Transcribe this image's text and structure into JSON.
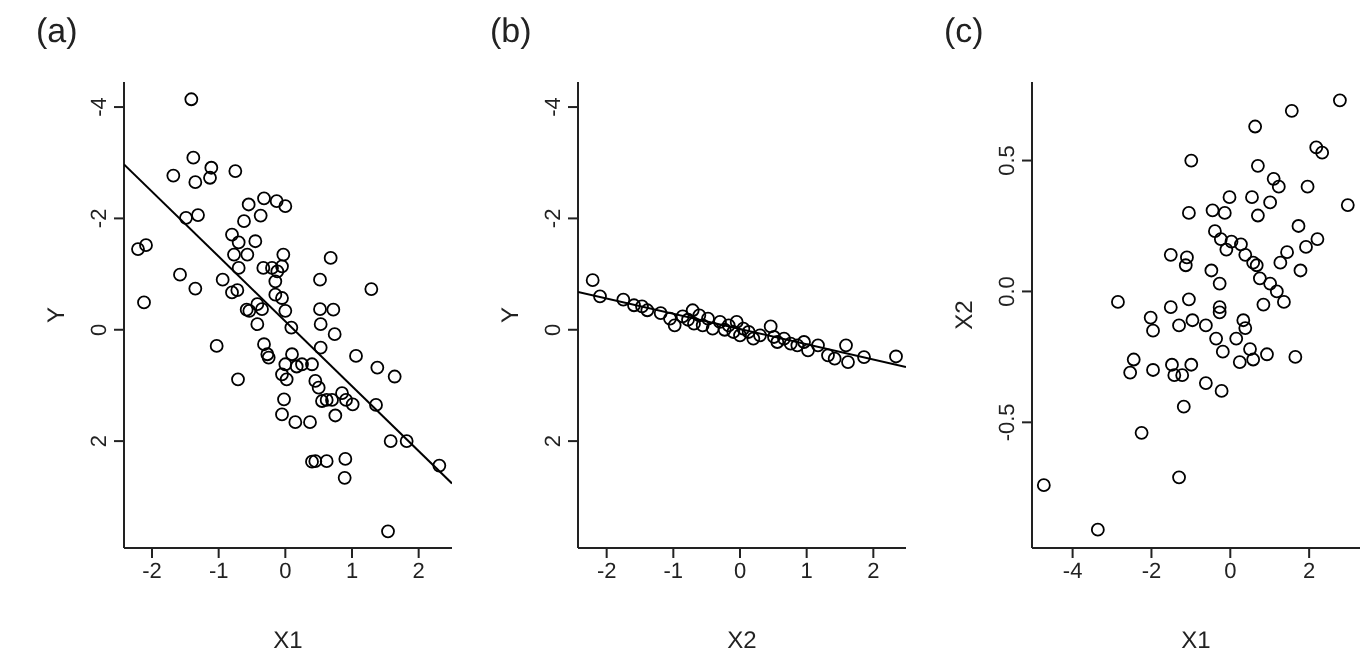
{
  "chart_data": [
    {
      "type": "scatter",
      "title": "(a)",
      "xlabel": "X1",
      "ylabel": "Y",
      "xlim": [
        -2.42,
        2.5
      ],
      "ylim": [
        3.92,
        -4.45
      ],
      "xticks": [
        -2,
        -1,
        0,
        1,
        2
      ],
      "yticks": [
        -4,
        -2,
        0,
        2
      ],
      "series": [
        {
          "type": "scatter",
          "marker": "circle",
          "color": "#000000",
          "x": [
            -1.41,
            -1.38,
            -1.68,
            -1.35,
            -1.11,
            -1.13,
            -0.75,
            -1.49,
            -1.31,
            -2.21,
            -2.09,
            -1.58,
            -1.35,
            -2.12,
            -0.94,
            -0.8,
            -0.72,
            -0.55,
            -0.32,
            -0.13,
            0.0,
            -0.62,
            -0.45,
            -0.8,
            -0.7,
            -0.77,
            -0.7,
            -0.57,
            -0.37,
            -0.33,
            -0.2,
            -0.15,
            -0.12,
            -0.05,
            -0.03,
            -0.15,
            -0.05,
            0.0,
            -0.58,
            -0.54,
            -0.42,
            -0.35,
            -0.42,
            0.09,
            -1.03,
            -0.32,
            -0.27,
            -0.25,
            0.1,
            0.0,
            -0.05,
            0.02,
            0.17,
            0.25,
            0.4,
            -0.02,
            -0.05,
            0.15,
            0.37,
            -0.71,
            0.52,
            0.68,
            0.52,
            0.72,
            0.53,
            0.74,
            0.53,
            1.06,
            1.29,
            1.38,
            1.64,
            0.45,
            0.5,
            0.55,
            0.62,
            0.7,
            0.85,
            0.91,
            1.01,
            0.75,
            0.45,
            0.4,
            0.62,
            0.9,
            0.89,
            1.36,
            1.58,
            1.82,
            2.31,
            1.54
          ],
          "values": [
            -4.14,
            -3.09,
            -2.77,
            -2.65,
            -2.91,
            -2.73,
            -2.85,
            -2.01,
            -2.06,
            -1.45,
            -1.52,
            -0.99,
            -0.74,
            -0.49,
            -0.9,
            -0.67,
            -0.71,
            -2.25,
            -2.36,
            -2.31,
            -2.22,
            -1.95,
            -1.59,
            -1.71,
            -1.57,
            -1.35,
            -1.11,
            -1.35,
            -2.05,
            -1.11,
            -1.11,
            -0.87,
            -1.05,
            -1.14,
            -1.35,
            -0.63,
            -0.57,
            -0.34,
            -0.36,
            -0.34,
            -0.46,
            -0.37,
            -0.1,
            -0.04,
            0.29,
            0.26,
            0.44,
            0.5,
            0.44,
            0.62,
            0.8,
            0.89,
            0.66,
            0.62,
            0.62,
            1.25,
            1.52,
            1.66,
            1.66,
            0.89,
            -0.9,
            -1.29,
            -0.37,
            -0.36,
            -0.1,
            0.08,
            0.32,
            0.47,
            -0.73,
            0.68,
            0.84,
            0.92,
            1.04,
            1.28,
            1.26,
            1.26,
            1.14,
            1.26,
            1.34,
            1.54,
            2.36,
            2.37,
            2.36,
            2.32,
            2.66,
            1.35,
            2.0,
            2.0,
            2.44,
            3.62
          ]
        },
        {
          "type": "line",
          "color": "#000000",
          "x": [
            -2.42,
            2.5
          ],
          "values": [
            -2.97,
            2.76
          ]
        }
      ]
    },
    {
      "type": "scatter",
      "title": "(b)",
      "xlabel": "X2",
      "ylabel": "Y",
      "xlim": [
        -2.43,
        2.49
      ],
      "ylim": [
        3.92,
        -4.45
      ],
      "xticks": [
        -2,
        -1,
        0,
        1,
        2
      ],
      "yticks": [
        -4,
        -2,
        0,
        2
      ],
      "series": [
        {
          "type": "scatter",
          "marker": "circle",
          "color": "#000000",
          "x": [
            -2.21,
            -2.1,
            -1.75,
            -1.59,
            -1.47,
            -1.39,
            -1.19,
            -1.05,
            -0.98,
            -0.86,
            -0.78,
            -0.71,
            -0.69,
            -0.61,
            -0.56,
            -0.48,
            -0.41,
            -0.3,
            -0.23,
            -0.17,
            -0.1,
            -0.05,
            0.0,
            0.05,
            0.13,
            0.2,
            0.3,
            0.46,
            0.51,
            0.56,
            0.66,
            0.76,
            0.86,
            0.96,
            1.02,
            1.17,
            1.32,
            1.42,
            1.59,
            1.62,
            1.86,
            2.34
          ],
          "values": [
            -0.89,
            -0.6,
            -0.54,
            -0.44,
            -0.42,
            -0.35,
            -0.3,
            -0.2,
            -0.08,
            -0.24,
            -0.18,
            -0.35,
            -0.11,
            -0.26,
            -0.08,
            -0.2,
            -0.02,
            -0.14,
            0.0,
            -0.08,
            0.04,
            -0.14,
            0.1,
            -0.02,
            0.04,
            0.16,
            0.1,
            -0.06,
            0.13,
            0.22,
            0.16,
            0.25,
            0.28,
            0.22,
            0.37,
            0.28,
            0.46,
            0.52,
            0.28,
            0.58,
            0.49,
            0.48
          ]
        },
        {
          "type": "line",
          "color": "#000000",
          "x": [
            -2.43,
            2.49
          ],
          "values": [
            -0.68,
            0.67
          ]
        }
      ]
    },
    {
      "type": "scatter",
      "title": "(c)",
      "xlabel": "X1",
      "ylabel": "X2",
      "xlim": [
        -5.03,
        3.29
      ],
      "ylim": [
        -0.98,
        0.8
      ],
      "xticks": [
        -4,
        -2,
        0,
        2
      ],
      "yticks": [
        -0.5,
        {
          "value": 0,
          "label": "0.0"
        },
        0.5
      ],
      "series": [
        {
          "type": "scatter",
          "marker": "circle",
          "color": "#000000",
          "x": [
            2.78,
            1.56,
            0.63,
            -0.99,
            0.7,
            2.18,
            2.33,
            1.1,
            1.23,
            1.96,
            2.98,
            -0.02,
            0.55,
            1.01,
            -1.05,
            -0.45,
            -0.14,
            0.7,
            -0.39,
            -0.24,
            0.03,
            0.27,
            1.73,
            2.21,
            1.92,
            -1.51,
            -1.1,
            -1.13,
            -0.1,
            0.38,
            0.58,
            0.67,
            1.27,
            1.44,
            1.78,
            -0.48,
            -0.27,
            0.75,
            1.01,
            1.18,
            1.36,
            0.84,
            -2.85,
            -1.05,
            -0.27,
            -0.27,
            -1.51,
            -2.02,
            -1.96,
            -1.3,
            -0.96,
            -0.62,
            0.33,
            0.38,
            0.15,
            -0.36,
            -0.19,
            0.5,
            0.58,
            0.24,
            0.93,
            1.65,
            -2.45,
            -2.54,
            -1.96,
            -1.48,
            -1.42,
            -1.22,
            -0.99,
            -0.62,
            -0.22,
            -1.18,
            -2.25,
            -1.3,
            -4.73,
            -3.36
          ],
          "values": [
            0.73,
            0.69,
            0.63,
            0.5,
            0.48,
            0.55,
            0.53,
            0.43,
            0.4,
            0.4,
            0.33,
            0.36,
            0.36,
            0.34,
            0.3,
            0.31,
            0.3,
            0.29,
            0.23,
            0.2,
            0.19,
            0.18,
            0.25,
            0.2,
            0.17,
            0.14,
            0.13,
            0.1,
            0.16,
            0.14,
            0.11,
            0.1,
            0.11,
            0.15,
            0.08,
            0.08,
            0.03,
            0.05,
            0.03,
            0.0,
            -0.04,
            -0.05,
            -0.04,
            -0.03,
            -0.06,
            -0.08,
            -0.06,
            -0.1,
            -0.15,
            -0.13,
            -0.11,
            -0.13,
            -0.11,
            -0.14,
            -0.18,
            -0.18,
            -0.23,
            -0.22,
            -0.26,
            -0.27,
            -0.24,
            -0.25,
            -0.26,
            -0.31,
            -0.3,
            -0.28,
            -0.32,
            -0.32,
            -0.28,
            -0.35,
            -0.38,
            -0.44,
            -0.54,
            -0.71,
            -0.74,
            -0.91
          ]
        }
      ]
    }
  ]
}
